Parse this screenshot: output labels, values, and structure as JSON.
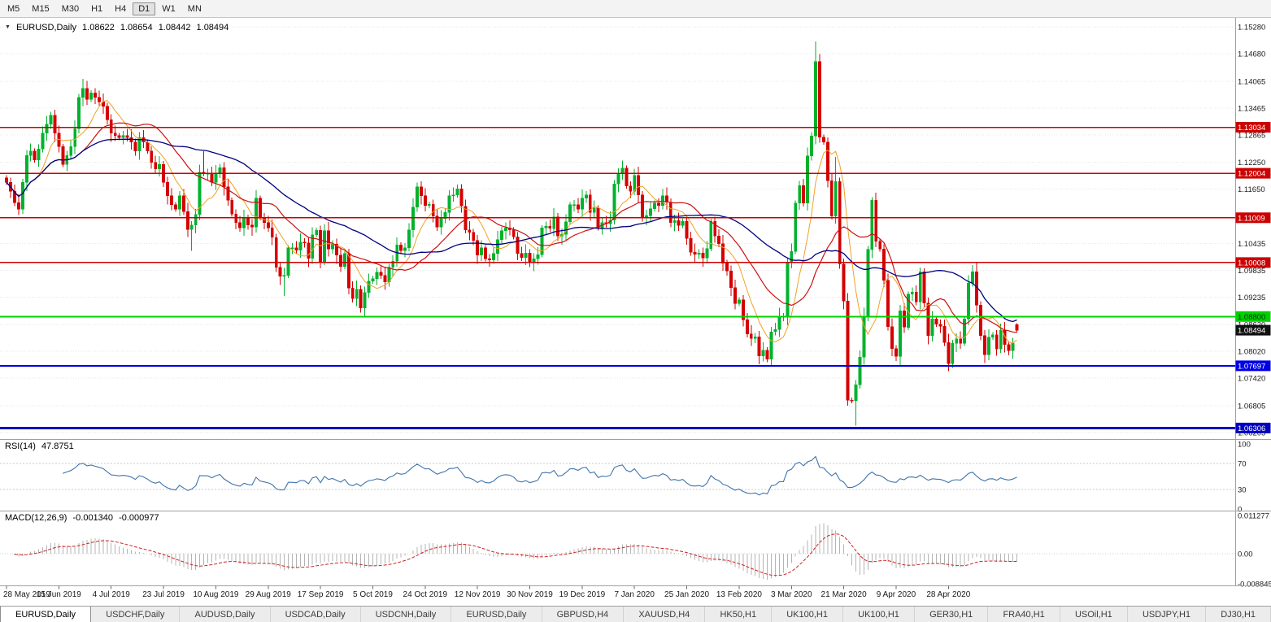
{
  "toolbar": {
    "timeframes": [
      "M5",
      "M15",
      "M30",
      "H1",
      "H4",
      "D1",
      "W1",
      "MN"
    ],
    "active": "D1"
  },
  "header": {
    "dropdown_icon": "▼",
    "symbol_period": "EURUSD,Daily",
    "open": "1.08622",
    "high": "1.08654",
    "low": "1.08442",
    "close": "1.08494"
  },
  "tabs": [
    {
      "label": "EURUSD,Daily",
      "active": true
    },
    {
      "label": "USDCHF,Daily",
      "active": false
    },
    {
      "label": "AUDUSD,Daily",
      "active": false
    },
    {
      "label": "USDCAD,Daily",
      "active": false
    },
    {
      "label": "USDCNH,Daily",
      "active": false
    },
    {
      "label": "EURUSD,Daily",
      "active": false
    },
    {
      "label": "GBPUSD,H4",
      "active": false
    },
    {
      "label": "XAUUSD,H4",
      "active": false
    },
    {
      "label": "HK50,H1",
      "active": false
    },
    {
      "label": "UK100,H1",
      "active": false
    },
    {
      "label": "UK100,H1",
      "active": false
    },
    {
      "label": "GER30,H1",
      "active": false
    },
    {
      "label": "FRA40,H1",
      "active": false
    },
    {
      "label": "USOil,H1",
      "active": false
    },
    {
      "label": "USDJPY,H1",
      "active": false
    },
    {
      "label": "DJ30,H1",
      "active": false
    }
  ],
  "chart_data": {
    "type": "candlestick",
    "title": "EURUSD,Daily",
    "x_labels": [
      "28 May 2019",
      "15 Jun 2019",
      "4 Jul 2019",
      "23 Jul 2019",
      "10 Aug 2019",
      "29 Aug 2019",
      "17 Sep 2019",
      "5 Oct 2019",
      "24 Oct 2019",
      "12 Nov 2019",
      "30 Nov 2019",
      "19 Dec 2019",
      "7 Jan 2020",
      "25 Jan 2020",
      "13 Feb 2020",
      "3 Mar 2020",
      "21 Mar 2020",
      "9 Apr 2020",
      "28 Apr 2020"
    ],
    "y_ticks": [
      1.1528,
      1.1468,
      1.14065,
      1.13465,
      1.12865,
      1.1225,
      1.1165,
      1.10435,
      1.09835,
      1.09235,
      1.0862,
      1.0802,
      1.0742,
      1.06805,
      1.06205
    ],
    "first_open": 1.119,
    "closes": [
      1.118,
      1.116,
      1.1135,
      1.112,
      1.118,
      1.124,
      1.125,
      1.123,
      1.1255,
      1.129,
      1.131,
      1.133,
      1.129,
      1.126,
      1.122,
      1.124,
      1.126,
      1.13,
      1.137,
      1.139,
      1.1366,
      1.138,
      1.137,
      1.136,
      1.135,
      1.132,
      1.129,
      1.1285,
      1.128,
      1.1285,
      1.128,
      1.127,
      1.125,
      1.128,
      1.127,
      1.125,
      1.1225,
      1.121,
      1.122,
      1.118,
      1.115,
      1.113,
      1.112,
      1.115,
      1.1115,
      1.1075,
      1.1085,
      1.1108,
      1.1203,
      1.12,
      1.12,
      1.118,
      1.12,
      1.1213,
      1.117,
      1.114,
      1.1109,
      1.109,
      1.1078,
      1.11,
      1.1085,
      1.108,
      1.1145,
      1.1101,
      1.109,
      1.1078,
      1.1057,
      1.099,
      1.097,
      1.0972,
      1.1034,
      1.1034,
      1.1028,
      1.1047,
      1.1045,
      1.101,
      1.1063,
      1.1073,
      1.1003,
      1.1072,
      1.1031,
      1.1042,
      1.1017,
      1.0992,
      1.1021,
      1.0944,
      1.092,
      1.0941,
      1.0899,
      1.0934,
      1.0959,
      1.0965,
      1.0979,
      1.0972,
      1.0957,
      1.099,
      1.1004,
      1.104,
      1.1027,
      1.1034,
      1.1074,
      1.1125,
      1.117,
      1.115,
      1.1128,
      1.1131,
      1.1105,
      1.108,
      1.1099,
      1.1113,
      1.115,
      1.1152,
      1.1166,
      1.1127,
      1.1074,
      1.1068,
      1.105,
      1.1017,
      1.1034,
      1.1009,
      1.1006,
      1.1021,
      1.1052,
      1.1072,
      1.1078,
      1.1074,
      1.1058,
      1.1021,
      1.1012,
      1.1022,
      1.1001,
      1.1009,
      1.1018,
      1.1078,
      1.1082,
      1.1077,
      1.1103,
      1.106,
      1.1064,
      1.1092,
      1.113,
      1.113,
      1.112,
      1.1145,
      1.1152,
      1.1113,
      1.1123,
      1.1078,
      1.109,
      1.1087,
      1.1096,
      1.1177,
      1.1199,
      1.1212,
      1.1172,
      1.116,
      1.1196,
      1.1152,
      1.1103,
      1.1106,
      1.1121,
      1.1134,
      1.1128,
      1.115,
      1.1136,
      1.109,
      1.1095,
      1.1084,
      1.1093,
      1.1055,
      1.1024,
      1.1019,
      1.1022,
      1.1011,
      1.1032,
      1.1093,
      1.106,
      1.1043,
      1.0999,
      1.0982,
      1.0945,
      1.0909,
      1.0917,
      1.0873,
      1.0841,
      1.0831,
      1.0835,
      1.0792,
      1.0805,
      1.0785,
      1.0846,
      1.0851,
      1.088,
      1.088,
      1.1,
      1.1026,
      1.1134,
      1.1173,
      1.1134,
      1.1239,
      1.1284,
      1.145,
      1.1281,
      1.127,
      1.1184,
      1.1105,
      1.1182,
      1.0997,
      1.0915,
      1.0693,
      1.0692,
      1.0727,
      1.0789,
      1.088,
      1.103,
      1.114,
      1.1048,
      1.1031,
      1.0961,
      1.0857,
      1.0808,
      1.0791,
      1.0893,
      1.0856,
      1.093,
      1.0935,
      1.0913,
      1.098,
      1.091,
      1.0837,
      1.0875,
      1.0863,
      1.0858,
      1.0822,
      1.0775,
      1.082,
      1.083,
      1.082,
      1.0875,
      1.0955,
      1.098,
      1.0906,
      1.0837,
      1.0795,
      1.0834,
      1.0839,
      1.0807,
      1.0849,
      1.0817,
      1.0804,
      1.082,
      1.08494
    ],
    "overrides": {
      "3": {
        "low": 1.1107
      },
      "19": {
        "high": 1.1412
      },
      "46": {
        "low": 1.1027
      },
      "49": {
        "high": 1.125
      },
      "69": {
        "low": 1.0926
      },
      "89": {
        "low": 1.0879
      },
      "102": {
        "high": 1.118
      },
      "112": {
        "high": 1.1175
      },
      "189": {
        "low": 1.0778
      },
      "201": {
        "high": 1.1495
      },
      "206": {
        "high": 1.1237
      },
      "211": {
        "low": 1.0636
      },
      "215": {
        "high": 1.1147
      },
      "227": {
        "high": 1.099
      },
      "239": {
        "high": 1.0972
      },
      "251": {
        "open": 1.08622,
        "high": 1.08654,
        "low": 1.08442
      }
    },
    "levels": [
      {
        "value": 1.13034,
        "color": "#cc0000",
        "text": "#ffffff",
        "width": 1.5
      },
      {
        "value": 1.12004,
        "color": "#cc0000",
        "text": "#ffffff",
        "width": 1.5
      },
      {
        "value": 1.11009,
        "color": "#cc0000",
        "text": "#ffffff",
        "width": 1.5
      },
      {
        "value": 1.10008,
        "color": "#cc0000",
        "text": "#ffffff",
        "width": 1.5
      },
      {
        "value": 1.088,
        "color": "#00d000",
        "text": "#00330a",
        "width": 2
      },
      {
        "value": 1.07697,
        "color": "#0000e6",
        "text": "#ffffff",
        "width": 2
      },
      {
        "value": 1.06306,
        "color": "#0000c0",
        "text": "#ffffff",
        "width": 3
      }
    ],
    "current_price": {
      "label": "1.08494",
      "value": 1.08494,
      "bg": "#101010",
      "fg": "#ffffff"
    },
    "ma": [
      {
        "period": 8,
        "color": "#eea227",
        "width": 1
      },
      {
        "period": 20,
        "color": "#cc1111",
        "width": 1.2
      },
      {
        "period": 42,
        "color": "#000080",
        "width": 1.3
      }
    ],
    "rsi": {
      "period": 14,
      "color": "#3f74ad",
      "label": "RSI(14)",
      "value": "47.8751",
      "levels": [
        70,
        30
      ],
      "scale_values": [
        100,
        70,
        30,
        0
      ],
      "scale_labels": [
        "100",
        "70",
        "30",
        "0"
      ]
    },
    "macd": {
      "fast": 12,
      "slow": 26,
      "signal": 9,
      "label": "MACD(12,26,9)",
      "value_main": "-0.001340",
      "value_signal": "-0.000977",
      "hist_color": "#b4b4b4",
      "signal_color": "#cc2222",
      "scale_values": [
        0.011277,
        0,
        -0.008845
      ],
      "scale_labels": [
        "0.011277",
        "0.00",
        "-0.008845"
      ]
    },
    "colors": {
      "up": "#00b22d",
      "down": "#d50000",
      "grid": "#e6e6e6",
      "separator": "#a0a0a0",
      "axis_text": "#1a1a1a"
    }
  }
}
